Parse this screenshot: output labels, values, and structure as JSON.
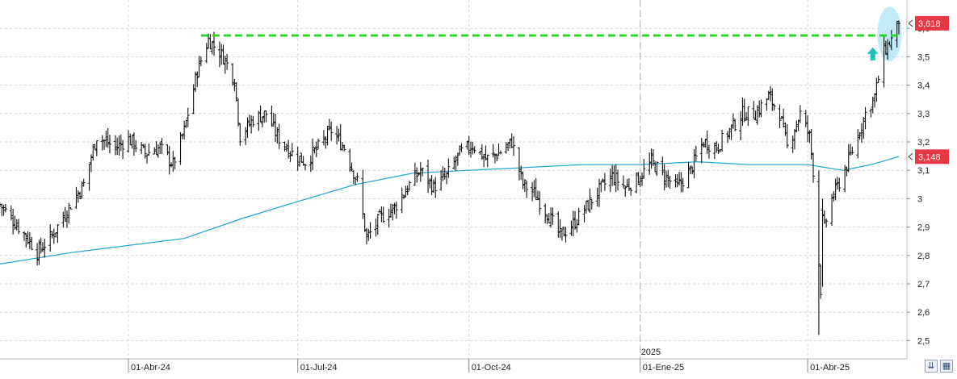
{
  "chart_data": {
    "type": "bar",
    "style": "OHLC price bars with moving average",
    "ylim": [
      2.45,
      3.7
    ],
    "y_ticks": [
      "2,5",
      "2,6",
      "2,7",
      "2,8",
      "2,9",
      "3",
      "3,1",
      "3,2",
      "3,3",
      "3,4",
      "3,5",
      "3,6"
    ],
    "y_tick_values": [
      2.5,
      2.6,
      2.7,
      2.8,
      2.9,
      3.0,
      3.1,
      3.2,
      3.3,
      3.4,
      3.5,
      3.6
    ],
    "x_ticks": [
      "01-Abr-24",
      "01-Jul-24",
      "01-Oct-24",
      "01-Ene-25",
      "01-Abr-25"
    ],
    "x_tick_dates": [
      "2024-04-01",
      "2024-07-01",
      "2024-10-01",
      "2025-01-01",
      "2025-04-01"
    ],
    "x_range": [
      "2024-01-23",
      "2025-05-20"
    ],
    "year_marker": {
      "label": "2025",
      "date": "2025-01-01"
    },
    "grid": true,
    "last_price": {
      "label": "3,618",
      "value": 3.618,
      "color": "#e63946"
    },
    "moving_average": {
      "label": "3,148",
      "value": 3.148,
      "color": "#1aa3d6"
    },
    "resistance": {
      "value": 3.575,
      "from": "2024-05-10",
      "to": "2025-05-19",
      "color": "#22dd22"
    },
    "arrow_marker": {
      "date": "2025-05-06",
      "value": 3.51,
      "color": "#20c0b8"
    },
    "highlight_ellipse": {
      "date": "2025-05-15",
      "value": 3.58,
      "color": "#a6e3f2"
    },
    "price_anchors": [
      [
        "2024-01-23",
        2.98
      ],
      [
        "2024-02-07",
        2.86
      ],
      [
        "2024-02-12",
        2.81
      ],
      [
        "2024-02-20",
        2.87
      ],
      [
        "2024-03-01",
        2.98
      ],
      [
        "2024-03-08",
        3.05
      ],
      [
        "2024-03-15",
        3.22
      ],
      [
        "2024-03-25",
        3.18
      ],
      [
        "2024-04-01",
        3.21
      ],
      [
        "2024-04-10",
        3.16
      ],
      [
        "2024-04-18",
        3.18
      ],
      [
        "2024-04-25",
        3.12
      ],
      [
        "2024-05-01",
        3.24
      ],
      [
        "2024-05-08",
        3.45
      ],
      [
        "2024-05-14",
        3.56
      ],
      [
        "2024-05-22",
        3.5
      ],
      [
        "2024-05-28",
        3.42
      ],
      [
        "2024-05-31",
        3.22
      ],
      [
        "2024-06-07",
        3.28
      ],
      [
        "2024-06-14",
        3.3
      ],
      [
        "2024-06-20",
        3.22
      ],
      [
        "2024-06-28",
        3.16
      ],
      [
        "2024-07-05",
        3.13
      ],
      [
        "2024-07-12",
        3.18
      ],
      [
        "2024-07-19",
        3.24
      ],
      [
        "2024-07-26",
        3.18
      ],
      [
        "2024-08-02",
        3.06
      ],
      [
        "2024-08-07",
        2.86
      ],
      [
        "2024-08-14",
        2.93
      ],
      [
        "2024-08-22",
        2.97
      ],
      [
        "2024-08-29",
        3.04
      ],
      [
        "2024-09-05",
        3.1
      ],
      [
        "2024-09-12",
        3.04
      ],
      [
        "2024-09-19",
        3.08
      ],
      [
        "2024-09-26",
        3.16
      ],
      [
        "2024-10-03",
        3.19
      ],
      [
        "2024-10-10",
        3.14
      ],
      [
        "2024-10-17",
        3.16
      ],
      [
        "2024-10-24",
        3.2
      ],
      [
        "2024-10-30",
        3.05
      ],
      [
        "2024-11-05",
        3.02
      ],
      [
        "2024-11-12",
        2.95
      ],
      [
        "2024-11-19",
        2.87
      ],
      [
        "2024-11-26",
        2.91
      ],
      [
        "2024-12-03",
        2.97
      ],
      [
        "2024-12-10",
        3.03
      ],
      [
        "2024-12-17",
        3.08
      ],
      [
        "2024-12-24",
        3.04
      ],
      [
        "2024-12-31",
        3.07
      ],
      [
        "2025-01-07",
        3.13
      ],
      [
        "2025-01-14",
        3.08
      ],
      [
        "2025-01-21",
        3.04
      ],
      [
        "2025-01-28",
        3.1
      ],
      [
        "2025-02-04",
        3.2
      ],
      [
        "2025-02-11",
        3.18
      ],
      [
        "2025-02-18",
        3.24
      ],
      [
        "2025-02-25",
        3.3
      ],
      [
        "2025-03-04",
        3.3
      ],
      [
        "2025-03-11",
        3.36
      ],
      [
        "2025-03-17",
        3.3
      ],
      [
        "2025-03-21",
        3.18
      ],
      [
        "2025-03-28",
        3.3
      ],
      [
        "2025-04-02",
        3.22
      ],
      [
        "2025-04-04",
        3.1
      ],
      [
        "2025-04-08",
        2.68
      ],
      [
        "2025-04-10",
        2.9
      ],
      [
        "2025-04-14",
        3.0
      ],
      [
        "2025-04-21",
        3.1
      ],
      [
        "2025-04-28",
        3.22
      ],
      [
        "2025-05-02",
        3.3
      ],
      [
        "2025-05-07",
        3.36
      ],
      [
        "2025-05-12",
        3.52
      ],
      [
        "2025-05-16",
        3.56
      ],
      [
        "2025-05-20",
        3.618
      ]
    ],
    "ma_points": [
      [
        "2024-01-23",
        2.77
      ],
      [
        "2024-03-01",
        2.81
      ],
      [
        "2024-05-01",
        2.86
      ],
      [
        "2024-06-01",
        2.93
      ],
      [
        "2024-07-01",
        2.99
      ],
      [
        "2024-08-01",
        3.05
      ],
      [
        "2024-09-01",
        3.09
      ],
      [
        "2024-10-01",
        3.1
      ],
      [
        "2024-11-01",
        3.11
      ],
      [
        "2024-12-01",
        3.12
      ],
      [
        "2025-01-01",
        3.12
      ],
      [
        "2025-02-01",
        3.13
      ],
      [
        "2025-03-01",
        3.12
      ],
      [
        "2025-04-01",
        3.12
      ],
      [
        "2025-04-20",
        3.1
      ],
      [
        "2025-05-05",
        3.12
      ],
      [
        "2025-05-20",
        3.148
      ]
    ],
    "spikes": [
      [
        "2025-04-07",
        2.52,
        3.1
      ],
      [
        "2025-04-09",
        2.69,
        3.0
      ]
    ]
  },
  "toolbar": {
    "scroll_icon": "double-chevron-down-icon",
    "save_icon": "floppy-disk-icon"
  }
}
